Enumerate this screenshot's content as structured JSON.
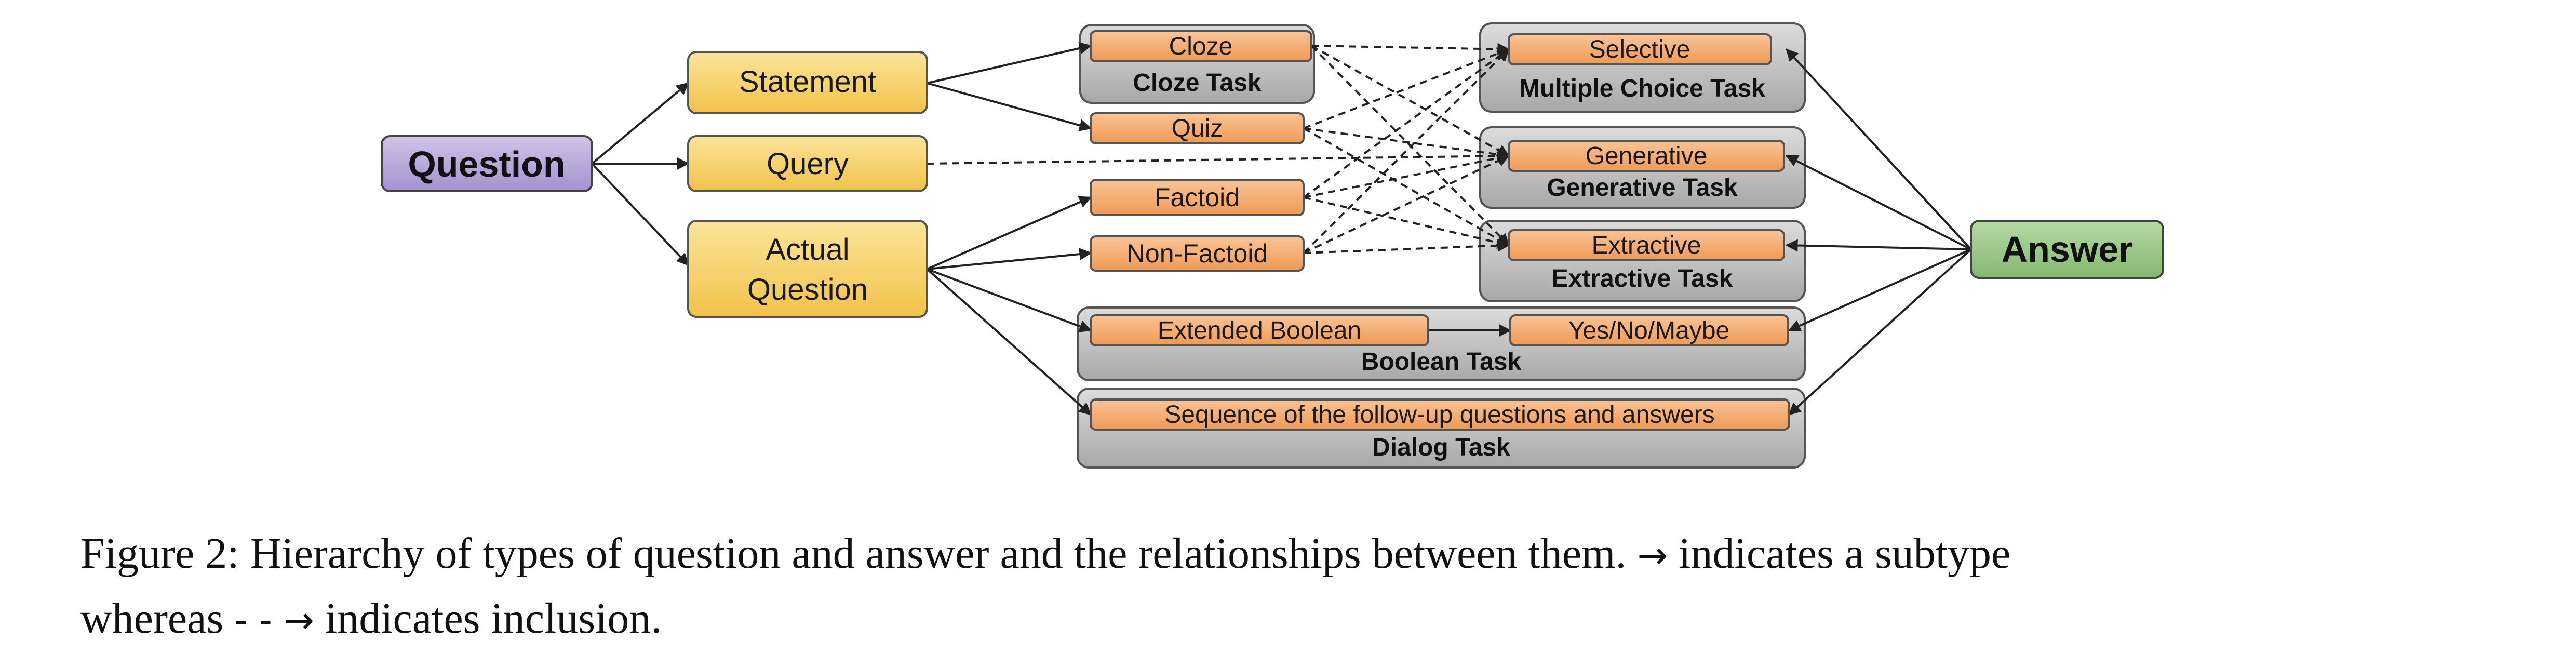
{
  "nodes": {
    "question": "Question",
    "statement": "Statement",
    "query": "Query",
    "actual_question_line1": "Actual",
    "actual_question_line2": "Question",
    "answer": "Answer",
    "cloze": "Cloze",
    "quiz": "Quiz",
    "factoid": "Factoid",
    "non_factoid": "Non-Factoid",
    "selective": "Selective",
    "generative": "Generative",
    "extractive": "Extractive",
    "extended_boolean": "Extended Boolean",
    "yes_no_maybe": "Yes/No/Maybe",
    "sequence": "Sequence of the follow-up questions and answers"
  },
  "tasks": {
    "cloze_task": "Cloze Task",
    "multiple_choice_task": "Multiple Choice Task",
    "generative_task": "Generative Task",
    "extractive_task": "Extractive Task",
    "boolean_task": "Boolean Task",
    "dialog_task": "Dialog Task"
  },
  "caption": {
    "prefix": "Figure 2: Hierarchy of types of question and answer and the relationships between them.",
    "solid_arrow": "→",
    "subtype_text": "indicates a subtype",
    "whereas": "whereas",
    "dashed_arrow": "- - →",
    "inclusion_text": "indicates inclusion."
  },
  "colors": {
    "question_fill": "#b5a6d6",
    "statement_fill": "#f7d36a",
    "answer_fill": "#93c47d",
    "subtype_fill": "#f4a76b",
    "task_fill": "#bdbdbd"
  }
}
